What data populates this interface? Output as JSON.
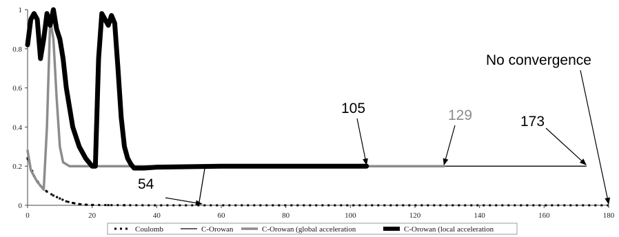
{
  "chart_data": {
    "type": "line",
    "title": "",
    "xlabel": "",
    "ylabel": "",
    "xlim": [
      0,
      180
    ],
    "ylim": [
      0,
      1
    ],
    "x_ticks": [
      0,
      20,
      40,
      60,
      80,
      100,
      120,
      140,
      160,
      180
    ],
    "y_ticks": [
      0,
      0.2,
      0.4,
      0.6,
      0.8,
      1
    ],
    "grid": false,
    "legend_placement": "bottom",
    "series": [
      {
        "name": "Coulomb",
        "color": "#000000",
        "style": "dotted",
        "x": [
          0,
          2,
          4,
          6,
          8,
          10,
          12,
          14,
          16,
          18,
          20,
          25,
          30,
          40,
          50,
          60,
          80,
          100,
          120,
          140,
          160,
          180
        ],
        "y": [
          0.24,
          0.15,
          0.1,
          0.07,
          0.05,
          0.035,
          0.02,
          0.012,
          0.006,
          0.003,
          0.002,
          0.001,
          0.0005,
          0,
          0,
          0,
          0,
          0,
          0,
          0,
          0,
          0
        ]
      },
      {
        "name": "C-Orowan",
        "color": "#000000",
        "style": "thin",
        "x": [
          53,
          55,
          60,
          80,
          100,
          120,
          140,
          160,
          173
        ],
        "y": [
          0,
          0.2,
          0.2,
          0.2,
          0.2,
          0.2,
          0.2,
          0.2,
          0.2
        ]
      },
      {
        "name": "C-Orowan (global acceleration",
        "color": "#8c8c8c",
        "style": "medium",
        "x": [
          0,
          1,
          3,
          5,
          6,
          7,
          8,
          9,
          10,
          11,
          13,
          16,
          20,
          40,
          60,
          80,
          100,
          110,
          120,
          129
        ],
        "y": [
          0.28,
          0.18,
          0.12,
          0.08,
          0.4,
          0.95,
          0.85,
          0.55,
          0.3,
          0.22,
          0.2,
          0.2,
          0.2,
          0.2,
          0.2,
          0.2,
          0.2,
          0.2,
          0.2,
          0.2
        ]
      },
      {
        "name": "C-Orowan (local acceleration",
        "color": "#000000",
        "style": "thick",
        "x": [
          0,
          1,
          2,
          3,
          4,
          5,
          6,
          7,
          8,
          9,
          10,
          11,
          12,
          14,
          16,
          18,
          20,
          21,
          22,
          23,
          24,
          25,
          26,
          27,
          28,
          29,
          30,
          31,
          32,
          33,
          34,
          36,
          40,
          60,
          80,
          100,
          105
        ],
        "y": [
          0.82,
          0.95,
          0.98,
          0.95,
          0.75,
          0.85,
          0.98,
          0.92,
          1.0,
          0.9,
          0.85,
          0.75,
          0.6,
          0.4,
          0.3,
          0.24,
          0.2,
          0.2,
          0.75,
          0.98,
          0.95,
          0.92,
          0.97,
          0.93,
          0.7,
          0.45,
          0.3,
          0.24,
          0.21,
          0.19,
          0.19,
          0.19,
          0.195,
          0.2,
          0.2,
          0.2,
          0.2
        ]
      }
    ],
    "annotations": [
      {
        "text": "54",
        "color": "#000000",
        "target": [
          54,
          0
        ]
      },
      {
        "text": "105",
        "color": "#000000",
        "target": [
          105,
          0.2
        ]
      },
      {
        "text": "129",
        "color": "#8c8c8c",
        "target": [
          129,
          0.2
        ]
      },
      {
        "text": "173",
        "color": "#000000",
        "target": [
          173,
          0.2
        ]
      },
      {
        "text": "No convergence",
        "color": "#000000",
        "target": [
          180,
          0
        ]
      }
    ]
  }
}
